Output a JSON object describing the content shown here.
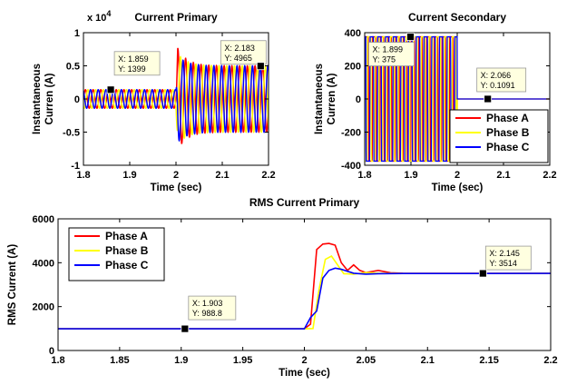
{
  "chart_data": [
    {
      "id": "primary",
      "type": "line",
      "title": "Current Primary",
      "xlabel": "Time (sec)",
      "ylabel": "Instantaneous Curren (A)",
      "exponent_label": "x 10",
      "exponent_power": "4",
      "xlim": [
        1.8,
        2.2
      ],
      "ylim": [
        -1,
        1
      ],
      "xticks": [
        "1.8",
        "1.9",
        "2",
        "2.1",
        "2.2"
      ],
      "yticks": [
        "-1",
        "-0.5",
        "0",
        "0.5",
        "1"
      ],
      "grid": false,
      "colors": {
        "Phase A": "#ff0000",
        "Phase B": "#ffff00",
        "Phase C": "#0000ff"
      },
      "datatips": [
        {
          "x": 1.859,
          "y": 0.1399,
          "xtext": "X: 1.859",
          "ytext": "Y: 1399"
        },
        {
          "x": 2.183,
          "y": 0.4965,
          "xtext": "X: 2.183",
          "ytext": "Y: 4965"
        }
      ]
    },
    {
      "id": "secondary",
      "type": "line",
      "title": "Current Secondary",
      "xlabel": "Time (sec)",
      "ylabel": "Instantaneous Curren (A)",
      "xlim": [
        1.8,
        2.2
      ],
      "ylim": [
        -400,
        400
      ],
      "xticks": [
        "1.8",
        "1.9",
        "2",
        "2.1",
        "2.2"
      ],
      "yticks": [
        "-400",
        "-200",
        "0",
        "200",
        "400"
      ],
      "grid": false,
      "legend": {
        "placement": "bottom-right",
        "entries": [
          "Phase A",
          "Phase B",
          "Phase C"
        ]
      },
      "colors": {
        "Phase A": "#ff0000",
        "Phase B": "#ffff00",
        "Phase C": "#0000ff"
      },
      "datatips": [
        {
          "x": 1.899,
          "y": 375,
          "xtext": "X: 1.899",
          "ytext": "Y: 375"
        },
        {
          "x": 2.066,
          "y": 0.1091,
          "xtext": "X: 2.066",
          "ytext": "Y: 0.1091"
        }
      ]
    },
    {
      "id": "rms",
      "type": "line",
      "title": "RMS Current Primary",
      "xlabel": "Time (sec)",
      "ylabel": "RMS Current (A)",
      "xlim": [
        1.8,
        2.2
      ],
      "ylim": [
        0,
        6000
      ],
      "xticks": [
        "1.8",
        "1.85",
        "1.9",
        "1.95",
        "2",
        "2.05",
        "2.1",
        "2.15",
        "2.2"
      ],
      "yticks": [
        "0",
        "2000",
        "4000",
        "6000"
      ],
      "grid": false,
      "legend": {
        "placement": "top-left",
        "entries": [
          "Phase A",
          "Phase B",
          "Phase C"
        ]
      },
      "colors": {
        "Phase A": "#ff0000",
        "Phase B": "#ffff00",
        "Phase C": "#0000ff"
      },
      "series": [
        {
          "name": "Phase A",
          "x": [
            1.8,
            2.0,
            2.005,
            2.01,
            2.015,
            2.02,
            2.025,
            2.03,
            2.035,
            2.04,
            2.045,
            2.05,
            2.055,
            2.06,
            2.07,
            2.08,
            2.2
          ],
          "y": [
            988.8,
            988.8,
            1200,
            4600,
            4850,
            4880,
            4800,
            4000,
            3650,
            3900,
            3650,
            3550,
            3600,
            3650,
            3540,
            3520,
            3514
          ]
        },
        {
          "name": "Phase B",
          "x": [
            1.8,
            2.0,
            2.007,
            2.012,
            2.017,
            2.022,
            2.027,
            2.032,
            2.04,
            2.05,
            2.06,
            2.08,
            2.2
          ],
          "y": [
            988.8,
            988.8,
            1000,
            2800,
            4150,
            4300,
            3900,
            3500,
            3480,
            3550,
            3520,
            3510,
            3514
          ]
        },
        {
          "name": "Phase C",
          "x": [
            1.8,
            2.0,
            2.005,
            2.01,
            2.015,
            2.02,
            2.025,
            2.03,
            2.04,
            2.05,
            2.06,
            2.08,
            2.2
          ],
          "y": [
            988.8,
            988.8,
            1500,
            1800,
            3300,
            3650,
            3750,
            3700,
            3520,
            3480,
            3500,
            3510,
            3514
          ]
        }
      ],
      "datatips": [
        {
          "x": 1.903,
          "y": 988.8,
          "xtext": "X: 1.903",
          "ytext": "Y: 988.8"
        },
        {
          "x": 2.145,
          "y": 3514,
          "xtext": "X: 2.145",
          "ytext": "Y: 3514"
        }
      ]
    }
  ]
}
